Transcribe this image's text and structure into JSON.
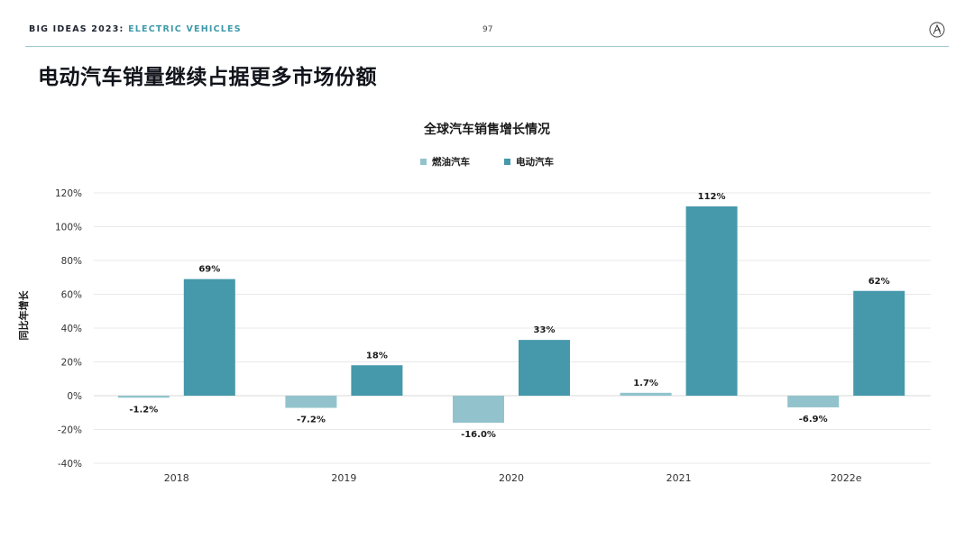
{
  "header": {
    "brand": "BIG IDEAS 2023",
    "separator": ":",
    "section": "ELECTRIC VEHICLES",
    "page_number": "97"
  },
  "page_title": "电动汽车销量继续占据更多市场份额",
  "colors": {
    "ice": "#92c3cc",
    "ev": "#4599aa",
    "grid": "#e8e8e8",
    "rule": "#9cc9cf",
    "accent": "#3f9aab"
  },
  "chart_data": {
    "type": "bar",
    "title": "全球汽车销售增长情况",
    "ylabel": "同比年增长",
    "xlabel": "",
    "categories": [
      "2018",
      "2019",
      "2020",
      "2021",
      "2022e"
    ],
    "series": [
      {
        "name": "燃油汽车",
        "values": [
          -1.2,
          -7.2,
          -16.0,
          1.7,
          -6.9
        ],
        "labels": [
          "-1.2%",
          "-7.2%",
          "-16.0%",
          "1.7%",
          "-6.9%"
        ]
      },
      {
        "name": "电动汽车",
        "values": [
          69,
          18,
          33,
          112,
          62
        ],
        "labels": [
          "69%",
          "18%",
          "33%",
          "112%",
          "62%"
        ]
      }
    ],
    "ylim": [
      -40,
      120
    ],
    "yticks": [
      "120%",
      "100%",
      "80%",
      "60%",
      "40%",
      "20%",
      "0%",
      "-20%",
      "-40%"
    ],
    "grid": true,
    "legend": "top-center"
  }
}
